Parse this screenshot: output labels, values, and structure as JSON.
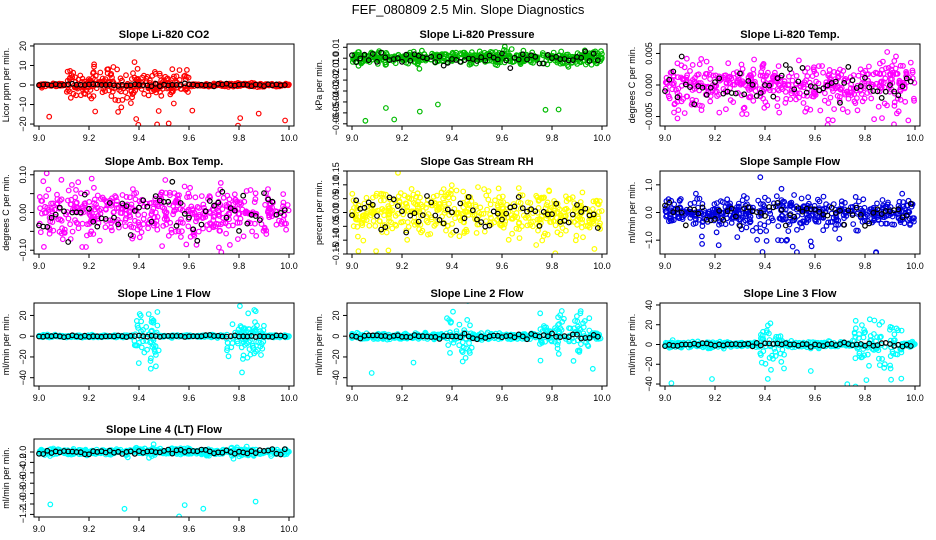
{
  "page": {
    "title": "FEF_080809  2.5 Min. Slope Diagnostics"
  },
  "chart_data": [
    {
      "type": "scatter",
      "title": "Slope Li-820 CO2",
      "ylabel": "Licor ppm per min.",
      "xlim": [
        8.98,
        10.02
      ],
      "ylim": [
        -21,
        21
      ],
      "xticks": [
        9.0,
        9.2,
        9.4,
        9.6,
        9.8,
        10.0
      ],
      "xtick_labels": [
        "9.0",
        "9.2",
        "9.4",
        "9.6",
        "9.8",
        "10.0"
      ],
      "yticks": [
        -20,
        -10,
        0,
        10,
        20
      ],
      "ytick_labels": [
        "−20",
        "−10",
        "0",
        "10",
        "20"
      ],
      "color": "#ff0000",
      "overlay_color": "#000000"
    },
    {
      "type": "scatter",
      "title": "Slope Li-820 Pressure",
      "ylabel": "kPa per min.",
      "xlim": [
        8.98,
        10.02
      ],
      "ylim": [
        -0.062,
        0.013
      ],
      "xticks": [
        9.0,
        9.2,
        9.4,
        9.6,
        9.8,
        10.0
      ],
      "xtick_labels": [
        "9.0",
        "9.2",
        "9.4",
        "9.6",
        "9.8",
        "10.0"
      ],
      "yticks": [
        -0.06,
        -0.05,
        -0.04,
        -0.03,
        -0.02,
        -0.01,
        0.0,
        0.01
      ],
      "ytick_labels": [
        "−0.06",
        "−0.05",
        "−0.04",
        "−0.03",
        "−0.02",
        "−0.01",
        "0.0",
        "0.01"
      ],
      "color": "#00bb00",
      "overlay_color": "#000000"
    },
    {
      "type": "scatter",
      "title": "Slope Li-820 Temp.",
      "ylabel": "degrees C per min.",
      "xlim": [
        8.98,
        10.02
      ],
      "ylim": [
        -0.0065,
        0.0065
      ],
      "xticks": [
        9.0,
        9.2,
        9.4,
        9.6,
        9.8,
        10.0
      ],
      "xtick_labels": [
        "9.0",
        "9.2",
        "9.4",
        "9.6",
        "9.8",
        "10.0"
      ],
      "yticks": [
        -0.005,
        0.0,
        0.005
      ],
      "ytick_labels": [
        "−0.005",
        "0.000",
        "0.005"
      ],
      "color": "#ff00ff",
      "overlay_color": "#000000"
    },
    {
      "type": "scatter",
      "title": "Slope Amb. Box Temp.",
      "ylabel": "degrees C per min.",
      "xlim": [
        8.98,
        10.02
      ],
      "ylim": [
        -0.11,
        0.11
      ],
      "xticks": [
        9.0,
        9.2,
        9.4,
        9.6,
        9.8,
        10.0
      ],
      "xtick_labels": [
        "9.0",
        "9.2",
        "9.4",
        "9.6",
        "9.8",
        "10.0"
      ],
      "yticks": [
        -0.1,
        -0.05,
        0.0,
        0.05,
        0.1
      ],
      "ytick_labels": [
        "−0.10",
        "",
        "0.00",
        "",
        "0.10"
      ],
      "color": "#ff00ff",
      "overlay_color": "#000000"
    },
    {
      "type": "scatter",
      "title": "Slope Gas Stream RH",
      "ylabel": "percent per min.",
      "xlim": [
        8.98,
        10.02
      ],
      "ylim": [
        -0.15,
        0.15
      ],
      "xticks": [
        9.0,
        9.2,
        9.4,
        9.6,
        9.8,
        10.0
      ],
      "xtick_labels": [
        "9.0",
        "9.2",
        "9.4",
        "9.6",
        "9.8",
        "10.0"
      ],
      "yticks": [
        -0.15,
        -0.1,
        -0.05,
        0.0,
        0.05,
        0.1,
        0.15
      ],
      "ytick_labels": [
        "−0.15",
        "−0.10",
        "−0.05",
        "0.00",
        "0.05",
        "0.10",
        "0.15"
      ],
      "color": "#ffff00",
      "overlay_color": "#000000"
    },
    {
      "type": "scatter",
      "title": "Slope Sample Flow",
      "ylabel": "ml/min per min.",
      "xlim": [
        8.98,
        10.02
      ],
      "ylim": [
        -1.5,
        1.5
      ],
      "xticks": [
        9.0,
        9.2,
        9.4,
        9.6,
        9.8,
        10.0
      ],
      "xtick_labels": [
        "9.0",
        "9.2",
        "9.4",
        "9.6",
        "9.8",
        "10.0"
      ],
      "yticks": [
        -1.0,
        0.0,
        1.0
      ],
      "ytick_labels": [
        "−1.0",
        "0.0",
        "1.0"
      ],
      "color": "#0000dd",
      "overlay_color": "#000000"
    },
    {
      "type": "scatter",
      "title": "Slope Line 1 Flow",
      "ylabel": "ml/min per min.",
      "xlim": [
        8.98,
        10.02
      ],
      "ylim": [
        -48,
        32
      ],
      "xticks": [
        9.0,
        9.2,
        9.4,
        9.6,
        9.8,
        10.0
      ],
      "xtick_labels": [
        "9.0",
        "9.2",
        "9.4",
        "9.6",
        "9.8",
        "10.0"
      ],
      "yticks": [
        -40,
        -20,
        0,
        20
      ],
      "ytick_labels": [
        "−40",
        "−20",
        "0",
        "20"
      ],
      "color": "#00ffff",
      "overlay_color": "#000000"
    },
    {
      "type": "scatter",
      "title": "Slope Line 2 Flow",
      "ylabel": "ml/min per min.",
      "xlim": [
        8.98,
        10.02
      ],
      "ylim": [
        -48,
        32
      ],
      "xticks": [
        9.0,
        9.2,
        9.4,
        9.6,
        9.8,
        10.0
      ],
      "xtick_labels": [
        "9.0",
        "9.2",
        "9.4",
        "9.6",
        "9.8",
        "10.0"
      ],
      "yticks": [
        -40,
        -20,
        0,
        20
      ],
      "ytick_labels": [
        "−40",
        "−20",
        "0",
        "20"
      ],
      "color": "#00ffff",
      "overlay_color": "#000000"
    },
    {
      "type": "scatter",
      "title": "Slope Line 3 Flow",
      "ylabel": "ml/min per min.",
      "xlim": [
        8.98,
        10.02
      ],
      "ylim": [
        -42,
        42
      ],
      "xticks": [
        9.0,
        9.2,
        9.4,
        9.6,
        9.8,
        10.0
      ],
      "xtick_labels": [
        "9.0",
        "9.2",
        "9.4",
        "9.6",
        "9.8",
        "10.0"
      ],
      "yticks": [
        -40,
        -20,
        0,
        20,
        40
      ],
      "ytick_labels": [
        "−40",
        "−20",
        "0",
        "20",
        "40"
      ],
      "color": "#00ffff",
      "overlay_color": "#000000"
    },
    {
      "type": "scatter",
      "title": "Slope Line 4 (LT) Flow",
      "ylabel": "ml/min per min.",
      "xlim": [
        8.98,
        10.02
      ],
      "ylim": [
        -1.25,
        0.25
      ],
      "xticks": [
        9.0,
        9.2,
        9.4,
        9.6,
        9.8,
        10.0
      ],
      "xtick_labels": [
        "9.0",
        "9.2",
        "9.4",
        "9.6",
        "9.8",
        "10.0"
      ],
      "yticks": [
        -1.2,
        -1.0,
        -0.8,
        -0.6,
        -0.4,
        -0.2,
        0.0
      ],
      "ytick_labels": [
        "−1.2",
        "−1.0",
        "−0.8",
        "−0.6",
        "−0.4",
        "−0.2",
        "0.0"
      ],
      "color": "#00ffff",
      "overlay_color": "#000000"
    }
  ]
}
